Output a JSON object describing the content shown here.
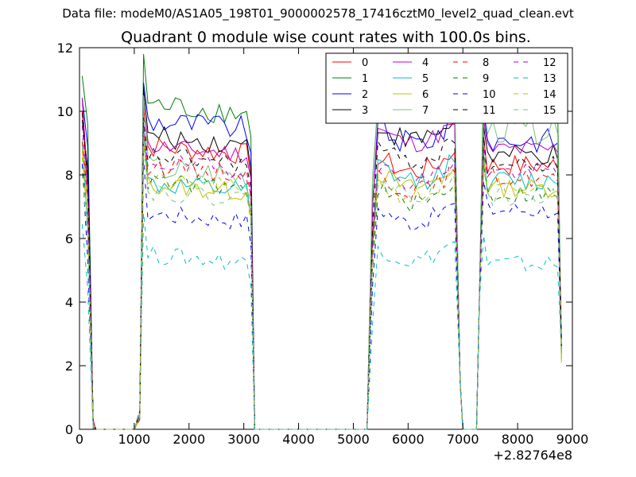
{
  "suptitle": "Data file: modeM0/AS1A05_198T01_9000002578_17416cztM0_level2_quad_clean.evt",
  "chart_data": {
    "type": "line",
    "title": "Quadrant 0 module wise count rates with 100.0s bins.",
    "xlabel": "",
    "ylabel": "",
    "x_offset_label": "+2.82764e8",
    "xlim": [
      0,
      9000
    ],
    "ylim": [
      0,
      12
    ],
    "xticks": [
      0,
      1000,
      2000,
      3000,
      4000,
      5000,
      6000,
      7000,
      8000,
      9000
    ],
    "yticks": [
      0,
      2,
      4,
      6,
      8,
      10,
      12
    ],
    "grid": false,
    "legend_position": "top-right",
    "series": [
      {
        "name": "0",
        "color": "#ff0000",
        "style": "solid",
        "plateau": [
          8.9,
          8.6,
          8.3
        ],
        "jitter": 0.35,
        "peak": 10.1
      },
      {
        "name": "1",
        "color": "#008000",
        "style": "solid",
        "plateau": [
          10.2,
          10.3,
          10.3
        ],
        "jitter": 0.4,
        "peak": 11.8
      },
      {
        "name": "2",
        "color": "#0000ff",
        "style": "solid",
        "plateau": [
          9.7,
          9.5,
          9.1
        ],
        "jitter": 0.4,
        "peak": 10.9
      },
      {
        "name": "3",
        "color": "#000000",
        "style": "solid",
        "plateau": [
          9.2,
          9.6,
          8.6
        ],
        "jitter": 0.35,
        "peak": 10.7
      },
      {
        "name": "4",
        "color": "#bf00bf",
        "style": "solid",
        "plateau": [
          8.9,
          9.5,
          8.8
        ],
        "jitter": 0.3,
        "peak": 10.3
      },
      {
        "name": "5",
        "color": "#00bfbf",
        "style": "solid",
        "plateau": [
          7.7,
          8.3,
          7.8
        ],
        "jitter": 0.35,
        "peak": 9.7
      },
      {
        "name": "6",
        "color": "#bfbf00",
        "style": "solid",
        "plateau": [
          7.7,
          8.1,
          7.6
        ],
        "jitter": 0.3,
        "peak": 9.0
      },
      {
        "name": "7",
        "color": "#7fbf7f",
        "style": "solid",
        "plateau": [
          8.2,
          10.4,
          9.4
        ],
        "jitter": 0.45,
        "peak": 10.5
      },
      {
        "name": "8",
        "color": "#ff0000",
        "style": "dashed",
        "plateau": [
          8.3,
          8.0,
          7.9
        ],
        "jitter": 0.3,
        "peak": 9.5
      },
      {
        "name": "9",
        "color": "#008000",
        "style": "dashed",
        "plateau": [
          7.8,
          7.6,
          7.4
        ],
        "jitter": 0.3,
        "peak": 9.2
      },
      {
        "name": "10",
        "color": "#0000ff",
        "style": "dashed",
        "plateau": [
          6.8,
          7.0,
          6.9
        ],
        "jitter": 0.3,
        "peak": 8.5
      },
      {
        "name": "11",
        "color": "#000000",
        "style": "dashed",
        "plateau": [
          8.6,
          8.9,
          8.3
        ],
        "jitter": 0.3,
        "peak": 9.8
      },
      {
        "name": "12",
        "color": "#bf00bf",
        "style": "dashed",
        "plateau": [
          8.4,
          8.3,
          8.1
        ],
        "jitter": 0.3,
        "peak": 9.6
      },
      {
        "name": "13",
        "color": "#00bfbf",
        "style": "dashed",
        "plateau": [
          5.5,
          5.8,
          5.2
        ],
        "jitter": 0.3,
        "peak": 6.8
      },
      {
        "name": "14",
        "color": "#bfbf00",
        "style": "dashed",
        "plateau": [
          7.8,
          7.8,
          7.5
        ],
        "jitter": 0.3,
        "peak": 9.0
      },
      {
        "name": "15",
        "color": "#7fbf7f",
        "style": "dashed",
        "plateau": [
          7.5,
          7.9,
          7.3
        ],
        "jitter": 0.3,
        "peak": 9.3
      }
    ],
    "segments": [
      {
        "x_start": 50,
        "x_end": 350,
        "kind": "edge"
      },
      {
        "x_start": 1050,
        "x_end": 3200,
        "kind": "orbit"
      },
      {
        "x_start": 5300,
        "x_end": 7000,
        "kind": "orbit"
      },
      {
        "x_start": 7300,
        "x_end": 8800,
        "kind": "orbit"
      }
    ],
    "bin_width_s": 100
  }
}
